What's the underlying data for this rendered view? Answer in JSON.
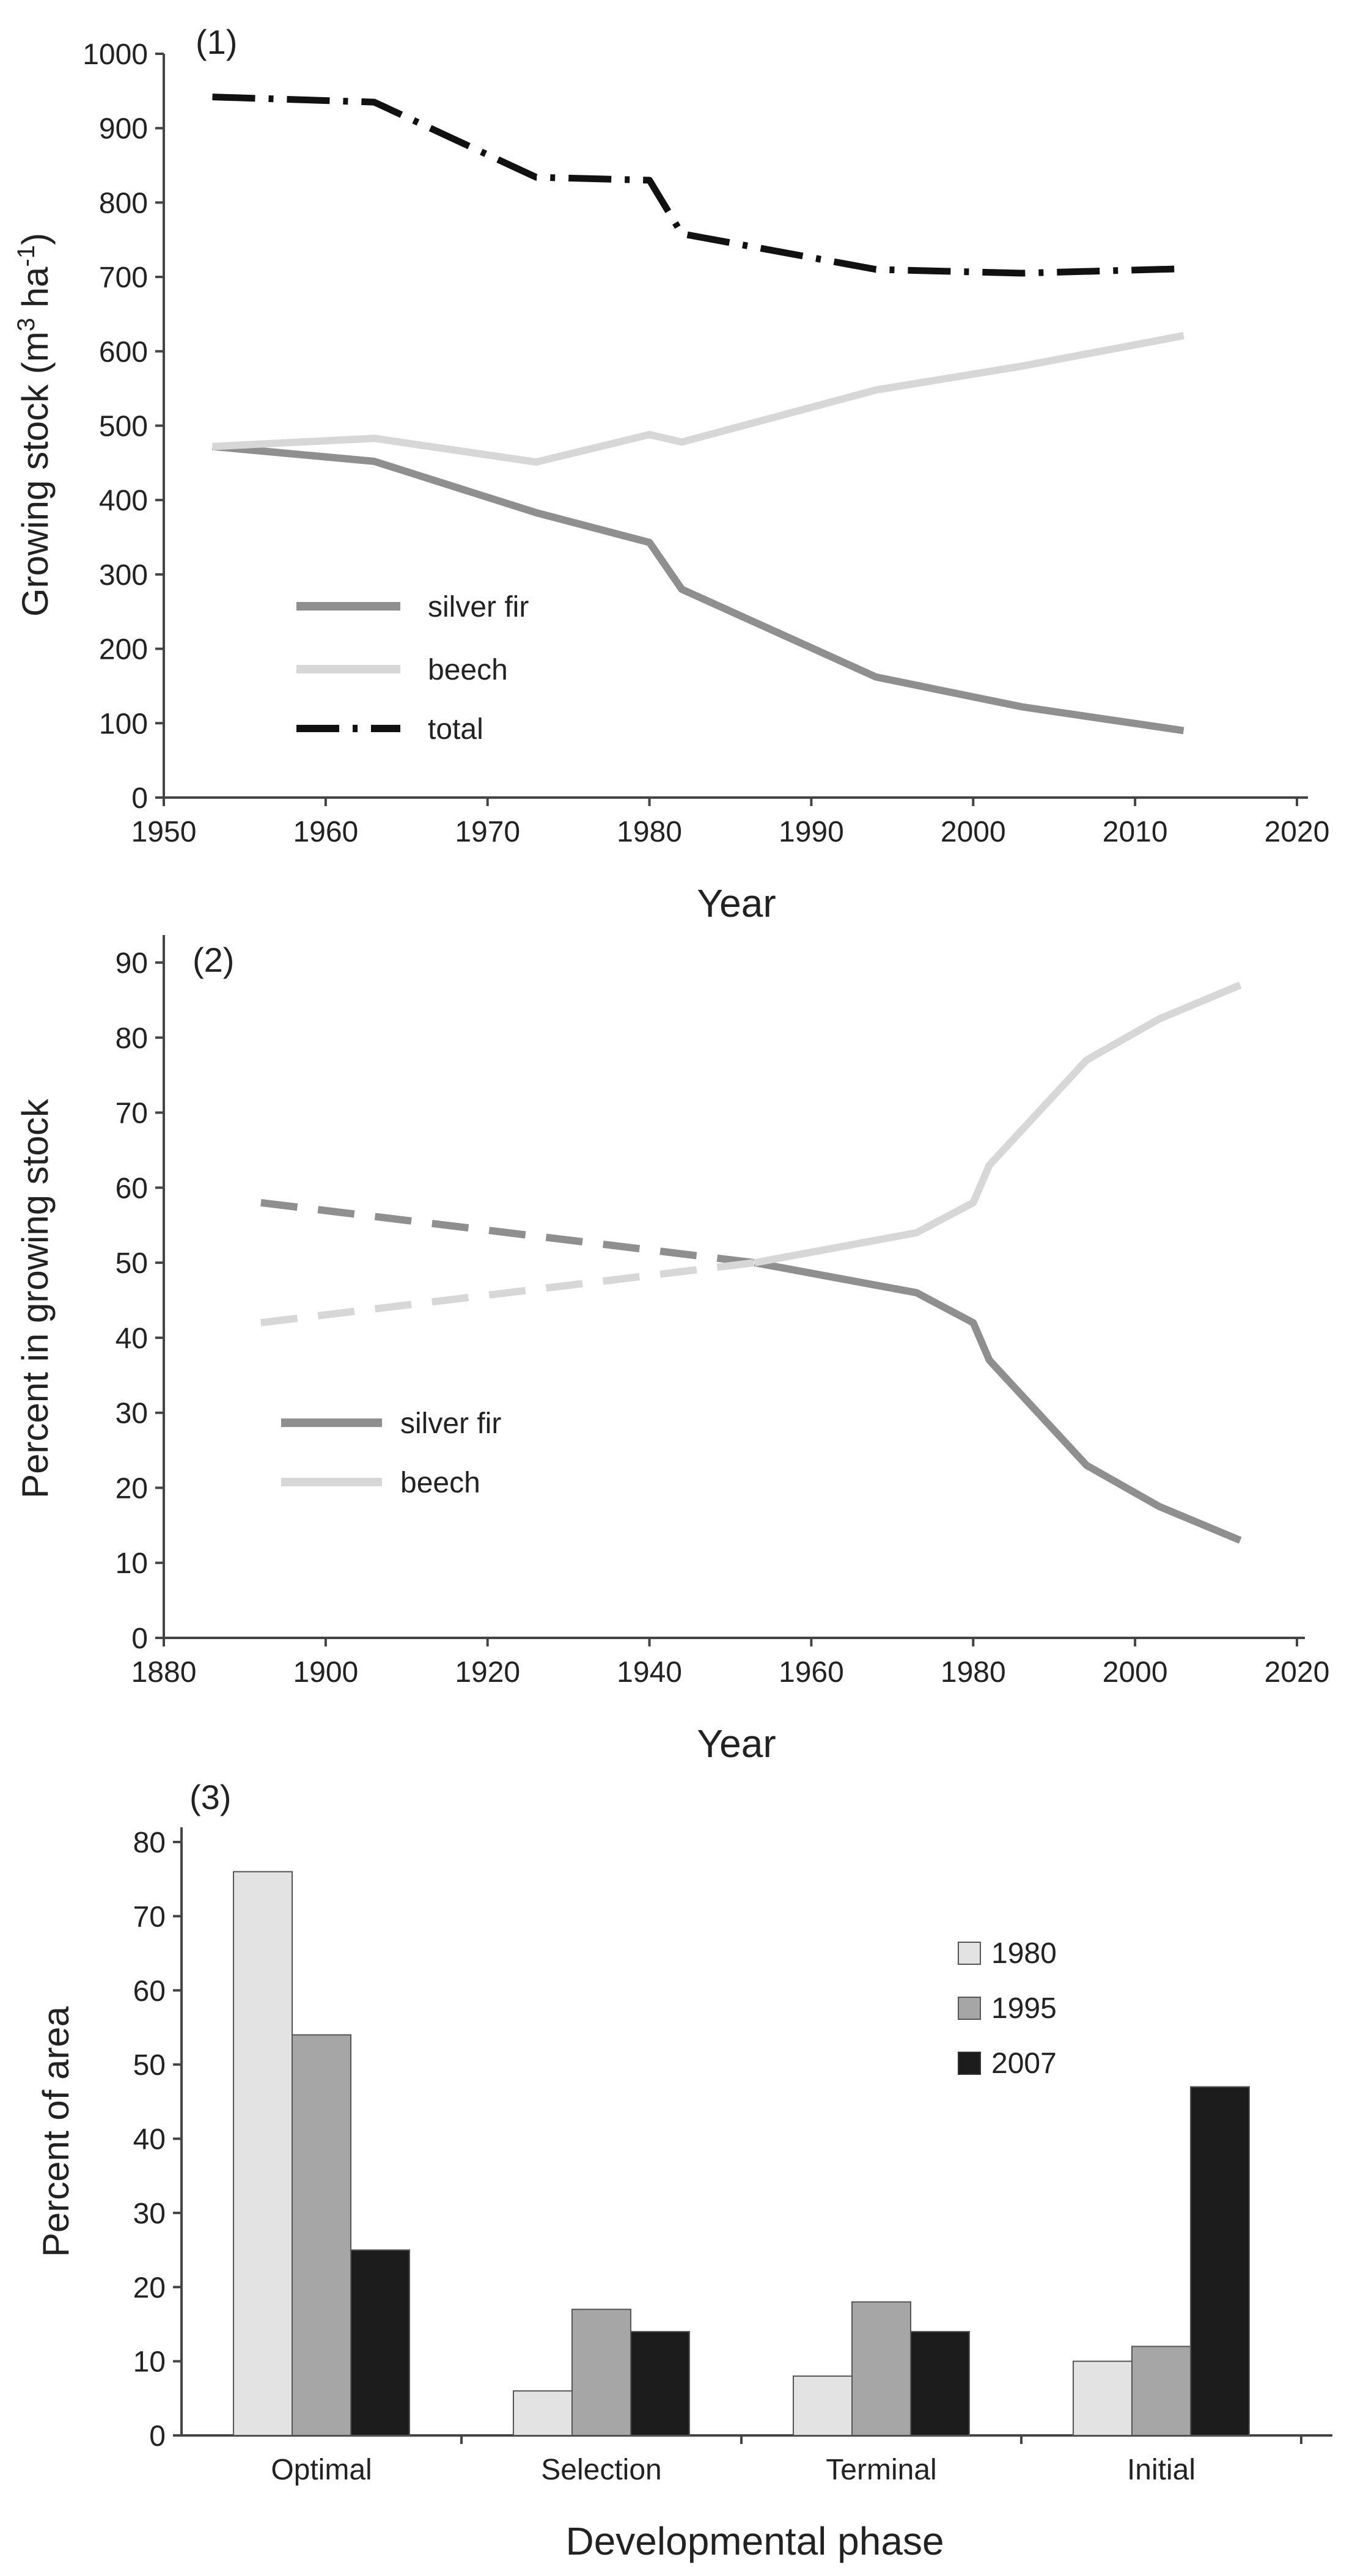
{
  "colors": {
    "silver_fir": "#8f8f8f",
    "beech": "#d7d7d7",
    "total": "#111111",
    "bar_1980": "#e3e3e3",
    "bar_1995": "#a6a6a6",
    "bar_2007": "#1c1c1c",
    "axis": "#444444"
  },
  "chart_data": [
    {
      "type": "line",
      "panel_label": "(1)",
      "xlabel": "Year",
      "ylabel_main": "Growing stock  (m",
      "ylabel_unit_sup1": "3",
      "ylabel_unit_mid": " ha",
      "ylabel_unit_sup2": "-1",
      "ylabel_close": ")",
      "xlim": [
        1950,
        2020
      ],
      "ylim": [
        0,
        1000
      ],
      "x_ticks": [
        "1950",
        "1960",
        "1970",
        "1980",
        "1990",
        "2000",
        "2010",
        "2020"
      ],
      "y_ticks": [
        "0",
        "100",
        "200",
        "300",
        "400",
        "500",
        "600",
        "700",
        "800",
        "900",
        "1000"
      ],
      "legend_position": "lower-left",
      "grid": false,
      "series": [
        {
          "name": "silver fir",
          "style": "solid",
          "points": [
            [
              1953,
              472
            ],
            [
              1963,
              452
            ],
            [
              1973,
              383
            ],
            [
              1980,
              343
            ],
            [
              1982,
              280
            ],
            [
              1994,
              162
            ],
            [
              2003,
              122
            ],
            [
              2013,
              90
            ]
          ]
        },
        {
          "name": "beech",
          "style": "solid",
          "points": [
            [
              1953,
              472
            ],
            [
              1963,
              483
            ],
            [
              1973,
              451
            ],
            [
              1980,
              488
            ],
            [
              1982,
              478
            ],
            [
              1994,
              548
            ],
            [
              2003,
              580
            ],
            [
              2013,
              621
            ]
          ]
        },
        {
          "name": "total",
          "style": "dash-dot",
          "points": [
            [
              1953,
              942
            ],
            [
              1963,
              935
            ],
            [
              1973,
              834
            ],
            [
              1980,
              830
            ],
            [
              1982,
              758
            ],
            [
              1994,
              710
            ],
            [
              2003,
              705
            ],
            [
              2013,
              711
            ]
          ]
        }
      ]
    },
    {
      "type": "line",
      "panel_label": "(2)",
      "xlabel": "Year",
      "ylabel": "Percent in growing stock",
      "xlim": [
        1880,
        2020
      ],
      "ylim": [
        0,
        90
      ],
      "x_ticks": [
        "1880",
        "1900",
        "1920",
        "1940",
        "1960",
        "1980",
        "2000",
        "2020"
      ],
      "y_ticks": [
        "0",
        "10",
        "20",
        "30",
        "40",
        "50",
        "60",
        "70",
        "80",
        "90"
      ],
      "legend_position": "lower-left",
      "grid": false,
      "series": [
        {
          "name": "silver fir",
          "dashed_points": [
            [
              1892,
              58
            ],
            [
              1953,
              50
            ]
          ],
          "points": [
            [
              1953,
              50
            ],
            [
              1963,
              48
            ],
            [
              1973,
              46
            ],
            [
              1980,
              42
            ],
            [
              1982,
              37
            ],
            [
              1994,
              23
            ],
            [
              2003,
              17.5
            ],
            [
              2013,
              13
            ]
          ]
        },
        {
          "name": "beech",
          "dashed_points": [
            [
              1892,
              42
            ],
            [
              1953,
              50
            ]
          ],
          "points": [
            [
              1953,
              50
            ],
            [
              1963,
              52
            ],
            [
              1973,
              54
            ],
            [
              1980,
              58
            ],
            [
              1982,
              63
            ],
            [
              1994,
              77
            ],
            [
              2003,
              82.5
            ],
            [
              2013,
              87
            ]
          ]
        }
      ]
    },
    {
      "type": "bar",
      "panel_label": "(3)",
      "xlabel": "Developmental phase",
      "ylabel": "Percent of area",
      "ylim": [
        0,
        80
      ],
      "y_ticks": [
        "0",
        "10",
        "20",
        "30",
        "40",
        "50",
        "60",
        "70",
        "80"
      ],
      "categories": [
        "Optimal",
        "Selection",
        "Terminal",
        "Initial"
      ],
      "legend_position": "top-right",
      "grid": false,
      "series": [
        {
          "name": "1980",
          "values": [
            76,
            6,
            8,
            10
          ]
        },
        {
          "name": "1995",
          "values": [
            54,
            17,
            18,
            12
          ]
        },
        {
          "name": "2007",
          "values": [
            25,
            14,
            14,
            47
          ]
        }
      ]
    }
  ]
}
